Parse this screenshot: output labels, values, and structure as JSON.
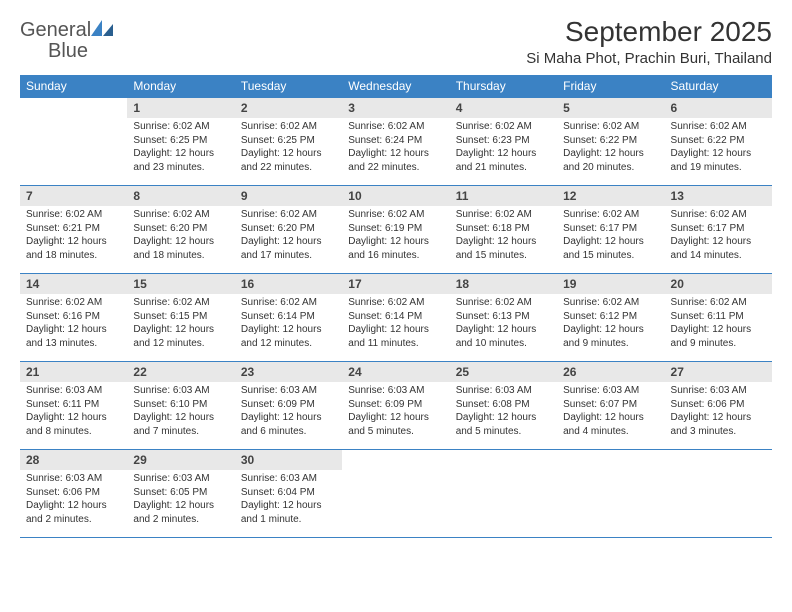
{
  "logo": {
    "text_general": "General",
    "text_blue": "Blue"
  },
  "title": "September 2025",
  "location": "Si Maha Phot, Prachin Buri, Thailand",
  "colors": {
    "header_bg": "#3b82c4",
    "daynum_bg": "#e8e8e8",
    "text": "#333333",
    "rule": "#3b82c4"
  },
  "fonts": {
    "title_pt": 28,
    "location_pt": 15,
    "header_pt": 12,
    "daynum_pt": 12,
    "body_pt": 10
  },
  "weekdays": [
    "Sunday",
    "Monday",
    "Tuesday",
    "Wednesday",
    "Thursday",
    "Friday",
    "Saturday"
  ],
  "weeks": [
    [
      null,
      {
        "n": "1",
        "sr": "Sunrise: 6:02 AM",
        "ss": "Sunset: 6:25 PM",
        "dl": "Daylight: 12 hours and 23 minutes."
      },
      {
        "n": "2",
        "sr": "Sunrise: 6:02 AM",
        "ss": "Sunset: 6:25 PM",
        "dl": "Daylight: 12 hours and 22 minutes."
      },
      {
        "n": "3",
        "sr": "Sunrise: 6:02 AM",
        "ss": "Sunset: 6:24 PM",
        "dl": "Daylight: 12 hours and 22 minutes."
      },
      {
        "n": "4",
        "sr": "Sunrise: 6:02 AM",
        "ss": "Sunset: 6:23 PM",
        "dl": "Daylight: 12 hours and 21 minutes."
      },
      {
        "n": "5",
        "sr": "Sunrise: 6:02 AM",
        "ss": "Sunset: 6:22 PM",
        "dl": "Daylight: 12 hours and 20 minutes."
      },
      {
        "n": "6",
        "sr": "Sunrise: 6:02 AM",
        "ss": "Sunset: 6:22 PM",
        "dl": "Daylight: 12 hours and 19 minutes."
      }
    ],
    [
      {
        "n": "7",
        "sr": "Sunrise: 6:02 AM",
        "ss": "Sunset: 6:21 PM",
        "dl": "Daylight: 12 hours and 18 minutes."
      },
      {
        "n": "8",
        "sr": "Sunrise: 6:02 AM",
        "ss": "Sunset: 6:20 PM",
        "dl": "Daylight: 12 hours and 18 minutes."
      },
      {
        "n": "9",
        "sr": "Sunrise: 6:02 AM",
        "ss": "Sunset: 6:20 PM",
        "dl": "Daylight: 12 hours and 17 minutes."
      },
      {
        "n": "10",
        "sr": "Sunrise: 6:02 AM",
        "ss": "Sunset: 6:19 PM",
        "dl": "Daylight: 12 hours and 16 minutes."
      },
      {
        "n": "11",
        "sr": "Sunrise: 6:02 AM",
        "ss": "Sunset: 6:18 PM",
        "dl": "Daylight: 12 hours and 15 minutes."
      },
      {
        "n": "12",
        "sr": "Sunrise: 6:02 AM",
        "ss": "Sunset: 6:17 PM",
        "dl": "Daylight: 12 hours and 15 minutes."
      },
      {
        "n": "13",
        "sr": "Sunrise: 6:02 AM",
        "ss": "Sunset: 6:17 PM",
        "dl": "Daylight: 12 hours and 14 minutes."
      }
    ],
    [
      {
        "n": "14",
        "sr": "Sunrise: 6:02 AM",
        "ss": "Sunset: 6:16 PM",
        "dl": "Daylight: 12 hours and 13 minutes."
      },
      {
        "n": "15",
        "sr": "Sunrise: 6:02 AM",
        "ss": "Sunset: 6:15 PM",
        "dl": "Daylight: 12 hours and 12 minutes."
      },
      {
        "n": "16",
        "sr": "Sunrise: 6:02 AM",
        "ss": "Sunset: 6:14 PM",
        "dl": "Daylight: 12 hours and 12 minutes."
      },
      {
        "n": "17",
        "sr": "Sunrise: 6:02 AM",
        "ss": "Sunset: 6:14 PM",
        "dl": "Daylight: 12 hours and 11 minutes."
      },
      {
        "n": "18",
        "sr": "Sunrise: 6:02 AM",
        "ss": "Sunset: 6:13 PM",
        "dl": "Daylight: 12 hours and 10 minutes."
      },
      {
        "n": "19",
        "sr": "Sunrise: 6:02 AM",
        "ss": "Sunset: 6:12 PM",
        "dl": "Daylight: 12 hours and 9 minutes."
      },
      {
        "n": "20",
        "sr": "Sunrise: 6:02 AM",
        "ss": "Sunset: 6:11 PM",
        "dl": "Daylight: 12 hours and 9 minutes."
      }
    ],
    [
      {
        "n": "21",
        "sr": "Sunrise: 6:03 AM",
        "ss": "Sunset: 6:11 PM",
        "dl": "Daylight: 12 hours and 8 minutes."
      },
      {
        "n": "22",
        "sr": "Sunrise: 6:03 AM",
        "ss": "Sunset: 6:10 PM",
        "dl": "Daylight: 12 hours and 7 minutes."
      },
      {
        "n": "23",
        "sr": "Sunrise: 6:03 AM",
        "ss": "Sunset: 6:09 PM",
        "dl": "Daylight: 12 hours and 6 minutes."
      },
      {
        "n": "24",
        "sr": "Sunrise: 6:03 AM",
        "ss": "Sunset: 6:09 PM",
        "dl": "Daylight: 12 hours and 5 minutes."
      },
      {
        "n": "25",
        "sr": "Sunrise: 6:03 AM",
        "ss": "Sunset: 6:08 PM",
        "dl": "Daylight: 12 hours and 5 minutes."
      },
      {
        "n": "26",
        "sr": "Sunrise: 6:03 AM",
        "ss": "Sunset: 6:07 PM",
        "dl": "Daylight: 12 hours and 4 minutes."
      },
      {
        "n": "27",
        "sr": "Sunrise: 6:03 AM",
        "ss": "Sunset: 6:06 PM",
        "dl": "Daylight: 12 hours and 3 minutes."
      }
    ],
    [
      {
        "n": "28",
        "sr": "Sunrise: 6:03 AM",
        "ss": "Sunset: 6:06 PM",
        "dl": "Daylight: 12 hours and 2 minutes."
      },
      {
        "n": "29",
        "sr": "Sunrise: 6:03 AM",
        "ss": "Sunset: 6:05 PM",
        "dl": "Daylight: 12 hours and 2 minutes."
      },
      {
        "n": "30",
        "sr": "Sunrise: 6:03 AM",
        "ss": "Sunset: 6:04 PM",
        "dl": "Daylight: 12 hours and 1 minute."
      },
      null,
      null,
      null,
      null
    ]
  ]
}
